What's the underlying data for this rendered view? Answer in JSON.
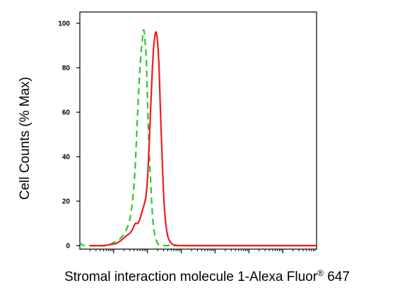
{
  "chart_data": {
    "type": "line",
    "xlabel": "Stromal interaction molecule 1-Alexa Fluor",
    "xlabel_sup": "®",
    "xlabel_suffix": " 647",
    "ylabel": "Cell Counts (% Max)",
    "x_scale": "log",
    "xlim": [
      1,
      10000000
    ],
    "ylim": [
      0,
      100
    ],
    "y_ticks": [
      0,
      20,
      40,
      60,
      80,
      100
    ],
    "y_tick_labels": [
      "0",
      "20",
      "40",
      "60",
      "80",
      "100"
    ],
    "x_major_ticks": [
      10,
      100,
      1000,
      10000,
      100000,
      1000000
    ],
    "grid": false,
    "legend": "none",
    "series": [
      {
        "color": "#2dc62d",
        "style": "dashed",
        "x": [
          1,
          1.3,
          3,
          6,
          9,
          15,
          22,
          30,
          36,
          42,
          47,
          52,
          58,
          64,
          70,
          76,
          83,
          92,
          100,
          110,
          125,
          140,
          160,
          185,
          210,
          240,
          300,
          400,
          600,
          1000
        ],
        "y": [
          1.5,
          0,
          0,
          0,
          1,
          3,
          6,
          12,
          20,
          32,
          47,
          62,
          76,
          86,
          92,
          97,
          94,
          84,
          66,
          46,
          28,
          14,
          6,
          2,
          0.6,
          0,
          0,
          0,
          0,
          0
        ]
      },
      {
        "color": "#ee1c1c",
        "style": "solid",
        "x": [
          2,
          3,
          5,
          8,
          12,
          17,
          22,
          27,
          32,
          38,
          44,
          52,
          60,
          68,
          78,
          90,
          100,
          112,
          125,
          138,
          150,
          165,
          180,
          200,
          220,
          240,
          265,
          290,
          320,
          360,
          410,
          480,
          560,
          700,
          1000,
          10000,
          10000000
        ],
        "y": [
          0,
          0,
          0,
          0.5,
          1,
          2.5,
          4,
          5,
          6,
          8,
          10,
          10,
          12,
          15,
          18,
          22,
          30,
          45,
          63,
          78,
          88,
          94,
          96,
          91,
          80,
          62,
          44,
          28,
          16,
          8,
          3.5,
          1.5,
          0.5,
          0.2,
          0,
          0,
          0
        ]
      }
    ]
  }
}
